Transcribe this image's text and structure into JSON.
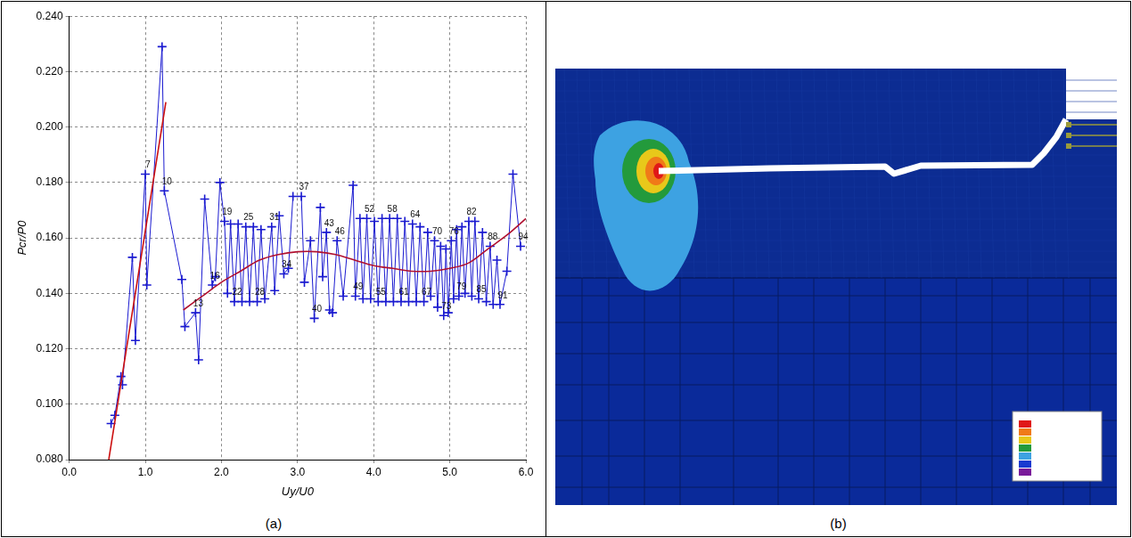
{
  "chart_data": {
    "type": "line",
    "x_label": "Uy/U0",
    "y_label": "Pcr/P0",
    "xlim": [
      0,
      6
    ],
    "xticks": [
      {
        "value": 0,
        "label": "0.0"
      },
      {
        "value": 1,
        "label": "1.0"
      },
      {
        "value": 2,
        "label": "2.0"
      },
      {
        "value": 3,
        "label": "3.0"
      },
      {
        "value": 4,
        "label": "4.0"
      },
      {
        "value": 5,
        "label": "5.0"
      },
      {
        "value": 6,
        "label": "6.0"
      }
    ],
    "ylim": [
      0.08,
      0.24
    ],
    "yticks": [
      {
        "value": 0.08,
        "label": "0.080"
      },
      {
        "value": 0.1,
        "label": "0.100"
      },
      {
        "value": 0.12,
        "label": "0.120"
      },
      {
        "value": 0.14,
        "label": "0.140"
      },
      {
        "value": 0.16,
        "label": "0.160"
      },
      {
        "value": 0.18,
        "label": "0.180"
      },
      {
        "value": 0.2,
        "label": "0.200"
      },
      {
        "value": 0.22,
        "label": "0.220"
      },
      {
        "value": 0.24,
        "label": "0.240"
      }
    ],
    "grid": true,
    "series": [
      {
        "color": "#1a1ad0",
        "marker": "cross",
        "line_style": "solid",
        "x": [
          0.55,
          0.6,
          0.68,
          0.7,
          0.83,
          0.87,
          1.0,
          1.02,
          1.22,
          1.25,
          1.48,
          1.52,
          1.66,
          1.7,
          1.78,
          1.88,
          1.92,
          1.98,
          2.04,
          2.08,
          2.12,
          2.17,
          2.22,
          2.27,
          2.32,
          2.37,
          2.42,
          2.47,
          2.52,
          2.57,
          2.66,
          2.7,
          2.76,
          2.82,
          2.88,
          2.94,
          3.05,
          3.09,
          3.17,
          3.22,
          3.3,
          3.33,
          3.38,
          3.42,
          3.46,
          3.52,
          3.6,
          3.73,
          3.76,
          3.82,
          3.86,
          3.91,
          3.96,
          4.01,
          4.06,
          4.11,
          4.16,
          4.21,
          4.26,
          4.31,
          4.36,
          4.41,
          4.46,
          4.51,
          4.56,
          4.61,
          4.66,
          4.71,
          4.75,
          4.8,
          4.84,
          4.88,
          4.92,
          4.95,
          4.98,
          5.02,
          5.05,
          5.09,
          5.12,
          5.16,
          5.2,
          5.25,
          5.29,
          5.33,
          5.38,
          5.43,
          5.48,
          5.53,
          5.57,
          5.62,
          5.66,
          5.75,
          5.83,
          5.93
        ],
        "values": [
          0.093,
          0.096,
          0.11,
          0.107,
          0.153,
          0.123,
          0.183,
          0.143,
          0.229,
          0.177,
          0.145,
          0.128,
          0.133,
          0.116,
          0.174,
          0.143,
          0.146,
          0.18,
          0.166,
          0.14,
          0.165,
          0.137,
          0.165,
          0.137,
          0.164,
          0.137,
          0.164,
          0.137,
          0.163,
          0.138,
          0.164,
          0.141,
          0.168,
          0.147,
          0.149,
          0.175,
          0.175,
          0.144,
          0.159,
          0.131,
          0.171,
          0.146,
          0.162,
          0.134,
          0.133,
          0.159,
          0.139,
          0.179,
          0.139,
          0.167,
          0.138,
          0.167,
          0.138,
          0.166,
          0.137,
          0.167,
          0.137,
          0.167,
          0.137,
          0.167,
          0.137,
          0.166,
          0.137,
          0.165,
          0.137,
          0.164,
          0.137,
          0.162,
          0.139,
          0.159,
          0.135,
          0.157,
          0.132,
          0.156,
          0.133,
          0.159,
          0.138,
          0.163,
          0.139,
          0.164,
          0.14,
          0.166,
          0.139,
          0.166,
          0.138,
          0.162,
          0.137,
          0.157,
          0.136,
          0.152,
          0.136,
          0.148,
          0.183,
          0.157
        ]
      },
      {
        "color": "#cc1010",
        "marker": "none",
        "line_style": "solid",
        "x": [
          0.52,
          1.27
        ],
        "values": [
          0.08,
          0.209
        ]
      },
      {
        "color": "#b01030",
        "marker": "none",
        "line_style": "solid",
        "x": [
          1.5,
          1.75,
          2.0,
          2.25,
          2.5,
          2.75,
          3.0,
          3.25,
          3.5,
          3.75,
          4.0,
          4.25,
          4.5,
          4.75,
          5.0,
          5.25,
          5.5,
          5.75,
          6.0
        ],
        "values": [
          0.134,
          0.139,
          0.144,
          0.148,
          0.152,
          0.154,
          0.155,
          0.155,
          0.154,
          0.152,
          0.15,
          0.149,
          0.148,
          0.148,
          0.149,
          0.151,
          0.156,
          0.161,
          0.167
        ]
      }
    ],
    "annotations": [
      {
        "x": 1.0,
        "y": 0.183,
        "text": "7"
      },
      {
        "x": 1.25,
        "y": 0.177,
        "text": "10"
      },
      {
        "x": 1.66,
        "y": 0.133,
        "text": "13"
      },
      {
        "x": 1.88,
        "y": 0.143,
        "text": "16"
      },
      {
        "x": 2.04,
        "y": 0.166,
        "text": "19"
      },
      {
        "x": 2.17,
        "y": 0.137,
        "text": "22"
      },
      {
        "x": 2.32,
        "y": 0.164,
        "text": "25"
      },
      {
        "x": 2.47,
        "y": 0.137,
        "text": "28"
      },
      {
        "x": 2.66,
        "y": 0.164,
        "text": "31"
      },
      {
        "x": 2.82,
        "y": 0.147,
        "text": "34"
      },
      {
        "x": 3.05,
        "y": 0.175,
        "text": "37"
      },
      {
        "x": 3.22,
        "y": 0.131,
        "text": "40"
      },
      {
        "x": 3.38,
        "y": 0.162,
        "text": "43"
      },
      {
        "x": 3.52,
        "y": 0.159,
        "text": "46"
      },
      {
        "x": 3.76,
        "y": 0.139,
        "text": "49"
      },
      {
        "x": 3.91,
        "y": 0.167,
        "text": "52"
      },
      {
        "x": 4.06,
        "y": 0.137,
        "text": "55"
      },
      {
        "x": 4.21,
        "y": 0.167,
        "text": "58"
      },
      {
        "x": 4.36,
        "y": 0.137,
        "text": "61"
      },
      {
        "x": 4.51,
        "y": 0.165,
        "text": "64"
      },
      {
        "x": 4.66,
        "y": 0.137,
        "text": "67"
      },
      {
        "x": 4.8,
        "y": 0.159,
        "text": "70"
      },
      {
        "x": 4.92,
        "y": 0.132,
        "text": "73"
      },
      {
        "x": 5.02,
        "y": 0.159,
        "text": "76"
      },
      {
        "x": 5.12,
        "y": 0.139,
        "text": "79"
      },
      {
        "x": 5.25,
        "y": 0.166,
        "text": "82"
      },
      {
        "x": 5.38,
        "y": 0.138,
        "text": "85"
      },
      {
        "x": 5.53,
        "y": 0.157,
        "text": "88"
      },
      {
        "x": 5.66,
        "y": 0.136,
        "text": "91"
      },
      {
        "x": 5.93,
        "y": 0.157,
        "text": "94"
      }
    ]
  },
  "captions": [
    "(a)",
    "(b)"
  ]
}
